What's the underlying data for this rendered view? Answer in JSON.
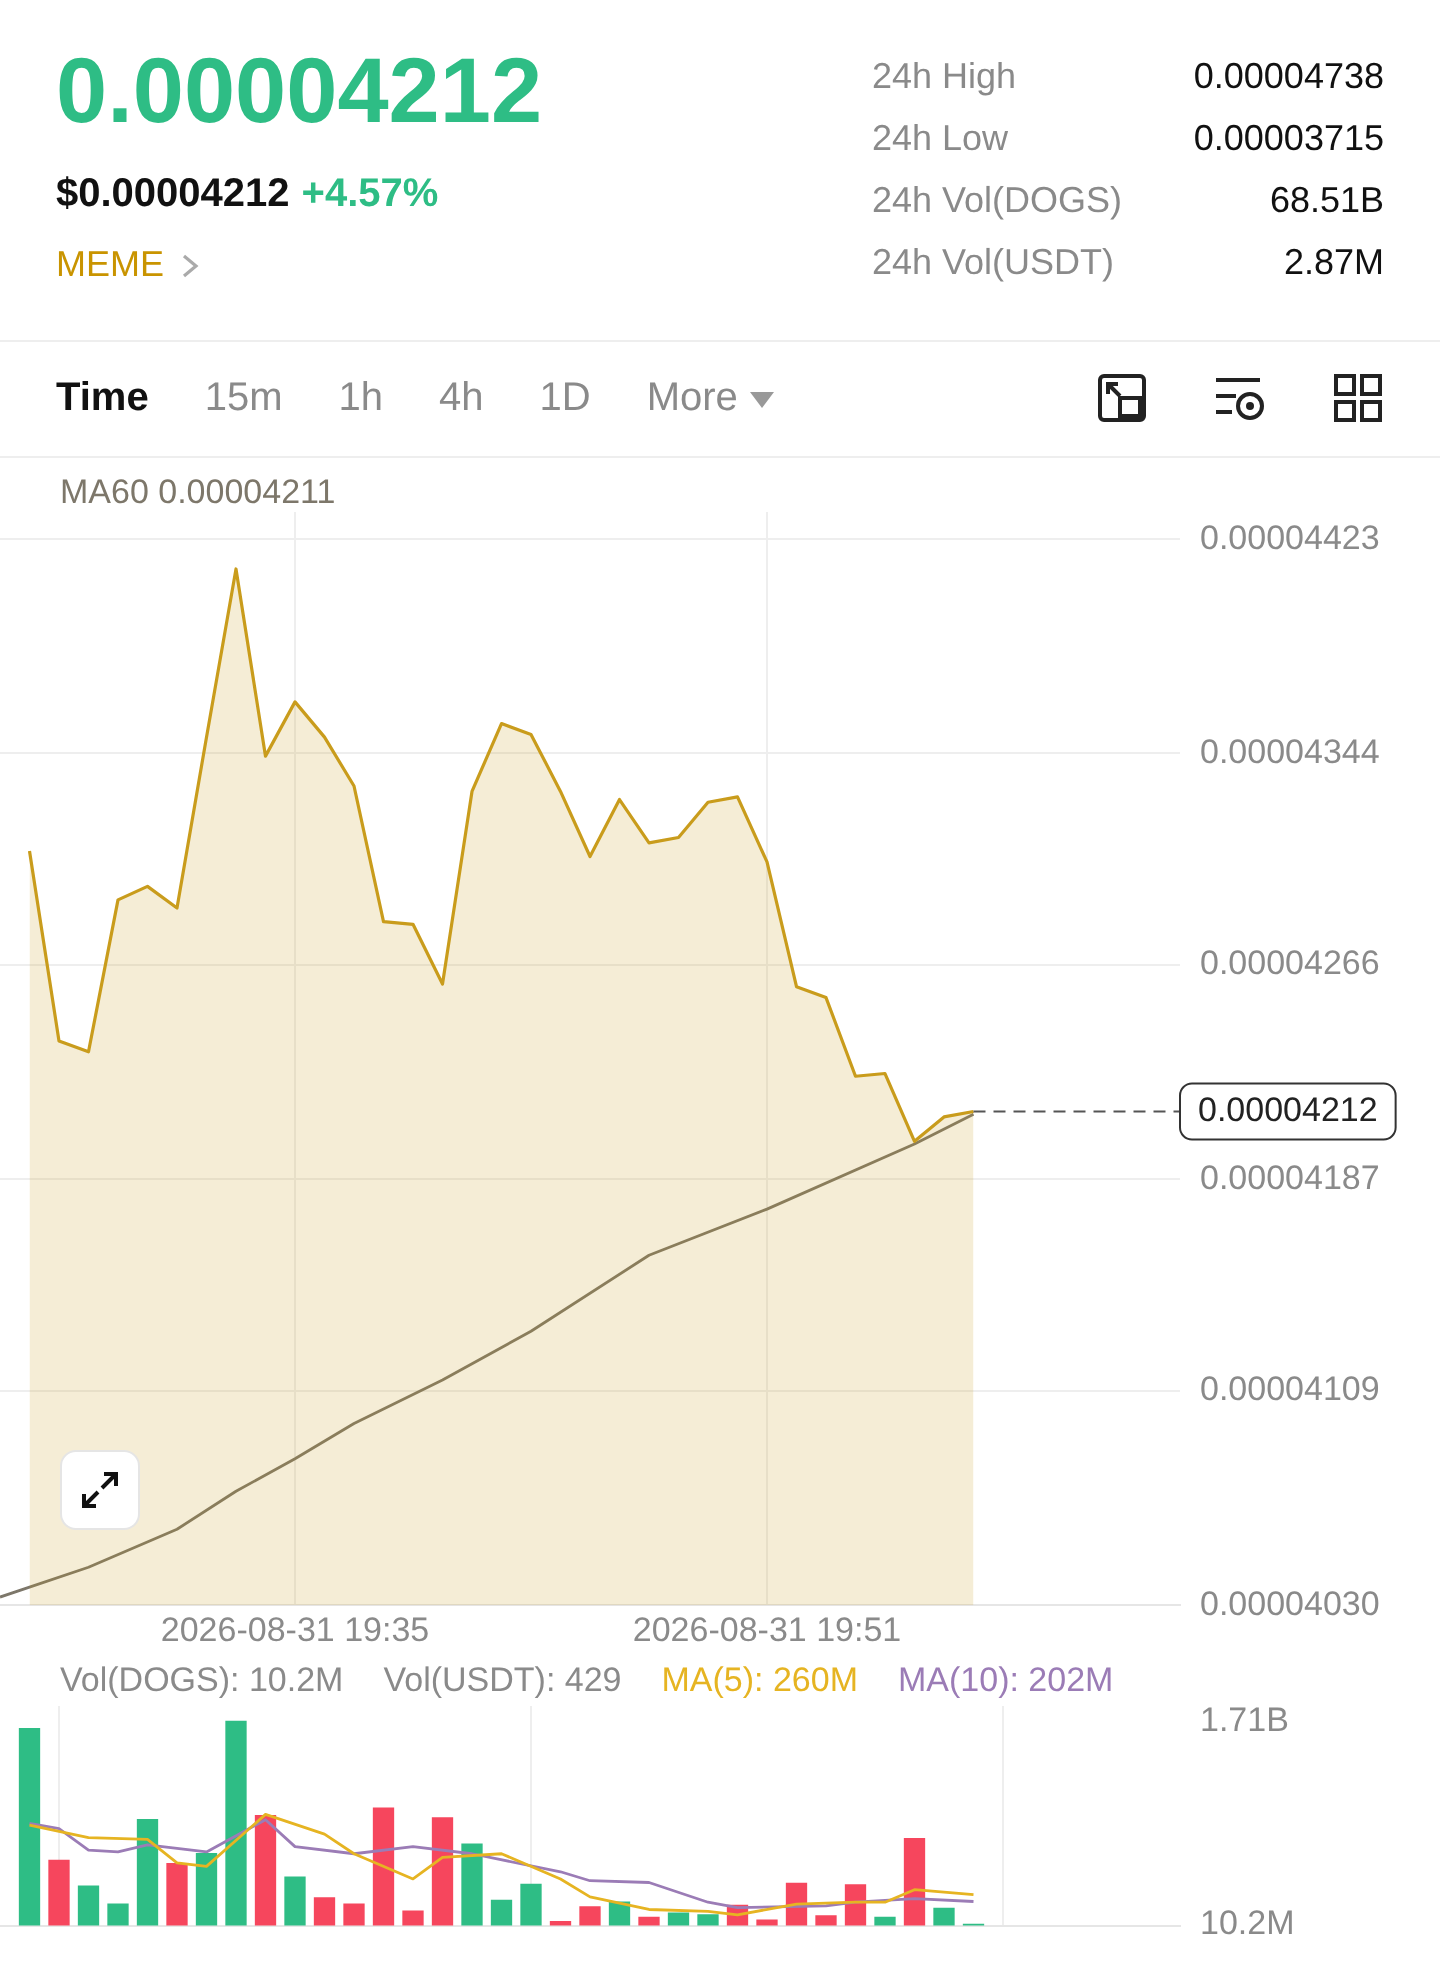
{
  "chart_data": [
    {
      "type": "other",
      "title": "0.00004212",
      "subtitle": "$0.00004212 +4.57%",
      "annotations": [
        "MEME",
        "24h High",
        "0.00004738",
        "24h Low",
        "0.00003715",
        "24h Vol(DOGS)",
        "68.51B",
        "24h Vol(USDT)",
        "2.87M",
        "Time",
        "15m",
        "1h",
        "4h",
        "1D",
        "More"
      ]
    },
    {
      "type": "area",
      "x": [
        "2026-08-31T19:26",
        "2026-08-31T19:27",
        "2026-08-31T19:28",
        "2026-08-31T19:29",
        "2026-08-31T19:30",
        "2026-08-31T19:31",
        "2026-08-31T19:32",
        "2026-08-31T19:33",
        "2026-08-31T19:34",
        "2026-08-31T19:35",
        "2026-08-31T19:36",
        "2026-08-31T19:37",
        "2026-08-31T19:38",
        "2026-08-31T19:39",
        "2026-08-31T19:40",
        "2026-08-31T19:41",
        "2026-08-31T19:42",
        "2026-08-31T19:43",
        "2026-08-31T19:44",
        "2026-08-31T19:45",
        "2026-08-31T19:46",
        "2026-08-31T19:47",
        "2026-08-31T19:48",
        "2026-08-31T19:49",
        "2026-08-31T19:50",
        "2026-08-31T19:51",
        "2026-08-31T19:52",
        "2026-08-31T19:53",
        "2026-08-31T19:54",
        "2026-08-31T19:55",
        "2026-08-31T19:56",
        "2026-08-31T19:57",
        "2026-08-31T19:58"
      ],
      "series": [
        {
          "color": "#c99c1c",
          "values": [
            4.308e-05,
            4.238e-05,
            4.234e-05,
            4.29e-05,
            4.295e-05,
            4.287e-05,
            4.35e-05,
            4.412e-05,
            4.343e-05,
            4.363e-05,
            4.35e-05,
            4.332e-05,
            4.282e-05,
            4.281e-05,
            4.259e-05,
            4.33e-05,
            4.355e-05,
            4.351e-05,
            4.33e-05,
            4.306e-05,
            4.327e-05,
            4.311e-05,
            4.313e-05,
            4.326e-05,
            4.328e-05,
            4.304e-05,
            4.258e-05,
            4.254e-05,
            4.225e-05,
            4.226e-05,
            4.201e-05,
            4.21e-05,
            4.212e-05
          ]
        },
        {
          "type": "line",
          "name": "MA60 0.00004211",
          "color": "#7d776a",
          "x": [
            "2026-08-31T19:25",
            "2026-08-31T19:28",
            "2026-08-31T19:31",
            "2026-08-31T19:33",
            "2026-08-31T19:35",
            "2026-08-31T19:37",
            "2026-08-31T19:40",
            "2026-08-31T19:43",
            "2026-08-31T19:47",
            "2026-08-31T19:51",
            "2026-08-31T19:56",
            "2026-08-31T19:58"
          ],
          "values": [
            4.033e-05,
            4.044e-05,
            4.058e-05,
            4.072e-05,
            4.084e-05,
            4.097e-05,
            4.113e-05,
            4.131e-05,
            4.159e-05,
            4.176e-05,
            4.2e-05,
            4.211e-05
          ]
        }
      ],
      "xlim": [
        "2026-08-31T19:25",
        "2026-08-31T20:05"
      ],
      "xticks": [
        {
          "value": "2026-08-31T19:35",
          "label": "2026-08-31 19:35"
        },
        {
          "value": "2026-08-31T19:51",
          "label": "2026-08-31 19:51"
        }
      ],
      "ylim": [
        4.03e-05,
        4.433e-05
      ],
      "yticks": [
        {
          "value": 4.03e-05,
          "label": "0.00004030"
        },
        {
          "value": 4.109e-05,
          "label": "0.00004109"
        },
        {
          "value": 4.187e-05,
          "label": "0.00004187"
        },
        {
          "value": 4.266e-05,
          "label": "0.00004266"
        },
        {
          "value": 4.344e-05,
          "label": "0.00004344"
        },
        {
          "value": 4.423e-05,
          "label": "0.00004423"
        }
      ],
      "grid": true,
      "legend": "top",
      "marker": "none",
      "ref_lines": [
        {
          "axis": "y",
          "value": 4.212e-05,
          "label": "0.00004212",
          "line_style": "dashed",
          "color": "#555555"
        }
      ]
    },
    {
      "type": "bar",
      "x": [
        "2026-08-31T19:26",
        "2026-08-31T19:27",
        "2026-08-31T19:28",
        "2026-08-31T19:29",
        "2026-08-31T19:30",
        "2026-08-31T19:31",
        "2026-08-31T19:32",
        "2026-08-31T19:33",
        "2026-08-31T19:34",
        "2026-08-31T19:35",
        "2026-08-31T19:36",
        "2026-08-31T19:37",
        "2026-08-31T19:38",
        "2026-08-31T19:39",
        "2026-08-31T19:40",
        "2026-08-31T19:41",
        "2026-08-31T19:42",
        "2026-08-31T19:43",
        "2026-08-31T19:44",
        "2026-08-31T19:45",
        "2026-08-31T19:46",
        "2026-08-31T19:47",
        "2026-08-31T19:48",
        "2026-08-31T19:49",
        "2026-08-31T19:50",
        "2026-08-31T19:51",
        "2026-08-31T19:52",
        "2026-08-31T19:53",
        "2026-08-31T19:54",
        "2026-08-31T19:55",
        "2026-08-31T19:56",
        "2026-08-31T19:57",
        "2026-08-31T19:58"
      ],
      "series": [
        {
          "colors": [
            "#2ebd85",
            "#f6465d",
            "#2ebd85",
            "#2ebd85",
            "#2ebd85",
            "#f6465d",
            "#2ebd85",
            "#2ebd85",
            "#f6465d",
            "#2ebd85",
            "#f6465d",
            "#f6465d",
            "#f6465d",
            "#f6465d",
            "#f6465d",
            "#2ebd85",
            "#2ebd85",
            "#2ebd85",
            "#f6465d",
            "#f6465d",
            "#2ebd85",
            "#f6465d",
            "#2ebd85",
            "#2ebd85",
            "#f6465d",
            "#f6465d",
            "#f6465d",
            "#f6465d",
            "#f6465d",
            "#2ebd85",
            "#f6465d",
            "#2ebd85",
            "#2ebd85"
          ],
          "values": [
            1650000000,
            546000000,
            331000000,
            180000000,
            887000000,
            519000000,
            602000000,
            1710000000,
            922000000,
            406000000,
            232000000,
            180000000,
            984000000,
            120000000,
            902000000,
            683000000,
            211000000,
            346000000,
            33000000,
            156000000,
            196000000,
            68000000,
            105000000,
            90000000,
            170000000,
            45000000,
            353000000,
            81000000,
            340000000,
            68000000,
            729000000,
            143000000,
            10200000
          ]
        },
        {
          "type": "line",
          "name": "MA(5): 260M",
          "color": "#e6b422",
          "x": [
            "2026-08-31T19:26",
            "2026-08-31T19:28",
            "2026-08-31T19:30",
            "2026-08-31T19:31",
            "2026-08-31T19:32",
            "2026-08-31T19:34",
            "2026-08-31T19:36",
            "2026-08-31T19:37",
            "2026-08-31T19:39",
            "2026-08-31T19:40",
            "2026-08-31T19:42",
            "2026-08-31T19:44",
            "2026-08-31T19:45",
            "2026-08-31T19:47",
            "2026-08-31T19:49",
            "2026-08-31T19:50",
            "2026-08-31T19:52",
            "2026-08-31T19:54",
            "2026-08-31T19:55",
            "2026-08-31T19:56",
            "2026-08-31T19:58"
          ],
          "values": [
            842000000,
            737000000,
            722000000,
            526000000,
            496000000,
            932000000,
            767000000,
            602000000,
            391000000,
            572000000,
            602000000,
            391000000,
            241000000,
            135000000,
            120000000,
            90000000,
            180000000,
            196000000,
            196000000,
            301000000,
            260000000
          ]
        },
        {
          "type": "line",
          "name": "MA(10): 202M",
          "color": "#9b7cb6",
          "x": [
            "2026-08-31T19:26",
            "2026-08-31T19:27",
            "2026-08-31T19:28",
            "2026-08-31T19:29",
            "2026-08-31T19:30",
            "2026-08-31T19:32",
            "2026-08-31T19:34",
            "2026-08-31T19:35",
            "2026-08-31T19:37",
            "2026-08-31T19:39",
            "2026-08-31T19:41",
            "2026-08-31T19:44",
            "2026-08-31T19:45",
            "2026-08-31T19:47",
            "2026-08-31T19:49",
            "2026-08-31T19:50",
            "2026-08-31T19:53",
            "2026-08-31T19:54",
            "2026-08-31T19:56",
            "2026-08-31T19:58"
          ],
          "values": [
            857000000,
            812000000,
            632000000,
            617000000,
            677000000,
            617000000,
            887000000,
            662000000,
            602000000,
            662000000,
            602000000,
            451000000,
            376000000,
            361000000,
            196000000,
            150000000,
            165000000,
            196000000,
            226000000,
            202000000
          ]
        }
      ],
      "annotations": [
        "Vol(DOGS): 10.2M",
        "Vol(USDT): 429"
      ],
      "xlim": [
        "2026-08-31T19:25",
        "2026-08-31T20:05"
      ],
      "xticks": [
        {
          "value": "2026-08-31T19:35",
          "label": null
        },
        {
          "value": "2026-08-31T19:51",
          "label": null
        }
      ],
      "ylim": [
        0,
        1840000000
      ],
      "yticks": [
        {
          "value": 10200000,
          "label": "10.2M"
        },
        {
          "value": 1710000000,
          "label": "1.71B"
        }
      ],
      "grid": "x",
      "tick_labels": "y",
      "legend": "top",
      "marker": "none"
    }
  ]
}
